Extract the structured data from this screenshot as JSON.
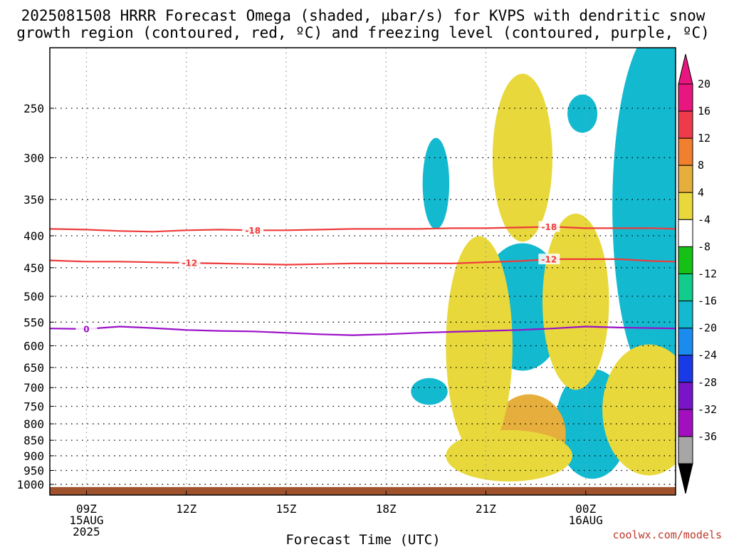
{
  "chart_data": {
    "type": "contour",
    "title_lines": [
      "2025081508 HRRR Forecast Omega (shaded, µbar/s) for KVPS with dendritic snow",
      "growth region (contoured, red, ºC) and freezing level (contoured, purple, ºC)"
    ],
    "xlabel": "Forecast Time (UTC)",
    "ylabel": "",
    "x_range_hours": [
      7.9,
      26.7
    ],
    "y_range_hpa": [
      1040,
      200
    ],
    "y_scale": "log-pressure (inverted)",
    "grid": true,
    "x_ticks": [
      {
        "hour": 9,
        "lines": [
          "09Z",
          "15AUG",
          "2025"
        ]
      },
      {
        "hour": 12,
        "lines": [
          "12Z"
        ]
      },
      {
        "hour": 15,
        "lines": [
          "15Z"
        ]
      },
      {
        "hour": 18,
        "lines": [
          "18Z"
        ]
      },
      {
        "hour": 21,
        "lines": [
          "21Z"
        ]
      },
      {
        "hour": 24,
        "lines": [
          "00Z",
          "16AUG"
        ]
      }
    ],
    "y_ticks": [
      250,
      300,
      350,
      400,
      450,
      500,
      550,
      600,
      650,
      700,
      750,
      800,
      850,
      900,
      950,
      1000
    ],
    "colorbar": {
      "ticks": [
        "20",
        "16",
        "12",
        "8",
        "4",
        "-4",
        "-8",
        "-12",
        "-16",
        "-20",
        "-24",
        "-28",
        "-32",
        "-36"
      ],
      "colors": [
        "#e8177f",
        "#ee3b4c",
        "#f07f2e",
        "#e6ae3c",
        "#e8d83c",
        "#ffffff",
        "#16c116",
        "#12cc8c",
        "#13b9cf",
        "#1a8cf0",
        "#1a3ae8",
        "#7a14c8",
        "#a30fbf",
        "#a6a6a6"
      ],
      "top_color": "#e8177f",
      "bottom_color": "#000000"
    },
    "omega_regions": [
      {
        "level": 8,
        "hour": 23.9,
        "p": 255,
        "dh": 0.45,
        "dp": 18
      },
      {
        "level": 8,
        "hour": 19.5,
        "p": 330,
        "dh": 0.4,
        "dp": 55
      },
      {
        "level": 8,
        "hour": 26.2,
        "p": 360,
        "dh": 1.4,
        "dp": 210
      },
      {
        "level": 9,
        "hour": 26.2,
        "p": 350,
        "dh": 1.0,
        "dp": 140
      },
      {
        "level": 10,
        "hour": 26.6,
        "p": 380,
        "dh": 0.4,
        "dp": 70
      },
      {
        "level": 4,
        "hour": 22.1,
        "p": 300,
        "dh": 0.9,
        "dp": 90
      },
      {
        "level": 4,
        "hour": 20.8,
        "p": 600,
        "dh": 1.0,
        "dp": 230
      },
      {
        "level": 3,
        "hour": 20.6,
        "p": 510,
        "dh": 0.35,
        "dp": 55
      },
      {
        "level": 8,
        "hour": 22.1,
        "p": 520,
        "dh": 1.3,
        "dp": 120
      },
      {
        "level": 9,
        "hour": 22.2,
        "p": 525,
        "dh": 0.95,
        "dp": 95
      },
      {
        "level": 10,
        "hour": 22.5,
        "p": 550,
        "dh": 0.6,
        "dp": 60
      },
      {
        "level": 11,
        "hour": 22.7,
        "p": 565,
        "dh": 0.25,
        "dp": 35
      },
      {
        "level": 12,
        "hour": 22.75,
        "p": 575,
        "dh": 0.12,
        "dp": 18
      },
      {
        "level": 4,
        "hour": 23.7,
        "p": 510,
        "dh": 1.0,
        "dp": 160
      },
      {
        "level": 3,
        "hour": 23.4,
        "p": 515,
        "dh": 0.45,
        "dp": 60
      },
      {
        "level": 2,
        "hour": 23.4,
        "p": 525,
        "dh": 0.2,
        "dp": 28
      },
      {
        "level": 8,
        "hour": 19.3,
        "p": 710,
        "dh": 0.55,
        "dp": 35
      },
      {
        "level": 4,
        "hour": 21.7,
        "p": 900,
        "dh": 1.9,
        "dp": 85
      },
      {
        "level": 3,
        "hour": 22.3,
        "p": 830,
        "dh": 1.1,
        "dp": 120
      },
      {
        "level": 2,
        "hour": 22.45,
        "p": 840,
        "dh": 0.85,
        "dp": 95
      },
      {
        "level": 1,
        "hour": 22.6,
        "p": 840,
        "dh": 0.65,
        "dp": 80
      },
      {
        "level": 0,
        "hour": 22.7,
        "p": 850,
        "dh": 0.45,
        "dp": 60
      },
      {
        "level": 8,
        "hour": 24.2,
        "p": 800,
        "dh": 1.1,
        "dp": 160
      },
      {
        "level": 9,
        "hour": 23.1,
        "p": 830,
        "dh": 0.25,
        "dp": 80
      },
      {
        "level": 9,
        "hour": 24.0,
        "p": 680,
        "dh": 0.2,
        "dp": 25
      },
      {
        "level": 4,
        "hour": 25.9,
        "p": 760,
        "dh": 1.4,
        "dp": 180
      },
      {
        "level": 3,
        "hour": 26.1,
        "p": 740,
        "dh": 0.85,
        "dp": 120
      },
      {
        "level": 2,
        "hour": 26.4,
        "p": 700,
        "dh": 0.45,
        "dp": 90
      },
      {
        "level": 1,
        "hour": 26.65,
        "p": 680,
        "dh": 0.2,
        "dp": 55
      }
    ],
    "isotherms": [
      {
        "label": "-18",
        "color": "#ee3b3b",
        "x": [
          7.9,
          9,
          10,
          11,
          12,
          13,
          14,
          15,
          16,
          17,
          18,
          19,
          20,
          21,
          22,
          23,
          24,
          25,
          26,
          26.7
        ],
        "y": [
          390,
          391,
          393,
          394,
          392,
          391,
          392,
          392,
          391,
          390,
          390,
          390,
          389,
          389,
          388,
          387,
          389,
          389,
          389,
          390
        ],
        "label_at": [
          14.0,
          22.9
        ]
      },
      {
        "label": "-12",
        "color": "#ee3b3b",
        "x": [
          7.9,
          9,
          10,
          11,
          12,
          13,
          14,
          15,
          16,
          17,
          18,
          19,
          20,
          21,
          22,
          23,
          24,
          25,
          26,
          26.7
        ],
        "y": [
          438,
          440,
          440,
          441,
          442,
          443,
          444,
          445,
          444,
          443,
          443,
          443,
          443,
          441,
          439,
          436,
          436,
          436,
          439,
          440
        ],
        "label_at": [
          12.1,
          22.9
        ]
      },
      {
        "label": "0",
        "color": "#9b10c8",
        "x": [
          7.9,
          9,
          10,
          11,
          12,
          13,
          14,
          15,
          16,
          17,
          18,
          19,
          20,
          21,
          22,
          23,
          24,
          25,
          26,
          26.7
        ],
        "y": [
          563,
          564,
          559,
          562,
          566,
          568,
          569,
          572,
          575,
          577,
          575,
          572,
          570,
          568,
          566,
          563,
          559,
          561,
          562,
          563
        ],
        "label_at": [
          9.0
        ]
      }
    ],
    "surface_band": {
      "color": "#a0522d",
      "p_top": 1010
    }
  },
  "credit": "coolwx.com/models"
}
